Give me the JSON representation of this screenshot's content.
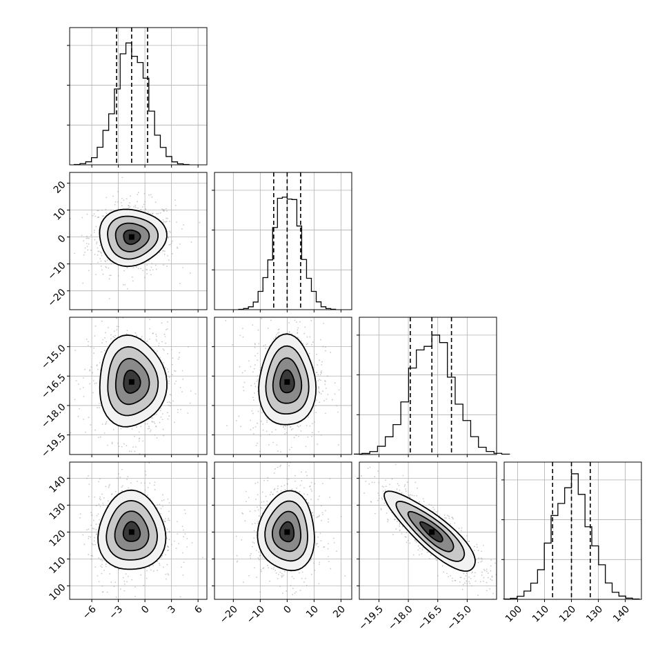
{
  "chart_data": {
    "type": "corner",
    "parameters": [
      {
        "id": "p0",
        "median": -1.5,
        "q16": -3.2,
        "q84": 0.3,
        "sigma": 1.8,
        "range": [
          -8.5,
          7.0
        ],
        "ticks": [
          -6,
          -3,
          0,
          3,
          6
        ],
        "tick_labels": [
          "−6",
          "−3",
          "0",
          "3",
          "6"
        ]
      },
      {
        "id": "p1",
        "median": 0.0,
        "q16": -5.0,
        "q84": 5.0,
        "sigma": 5.0,
        "range": [
          -27,
          24
        ],
        "ticks": [
          -20,
          -10,
          0,
          10,
          20
        ],
        "tick_labels": [
          "−20",
          "−10",
          "0",
          "10",
          "20"
        ]
      },
      {
        "id": "p2",
        "median": -16.8,
        "q16": -17.9,
        "q84": -15.8,
        "sigma": 1.1,
        "range": [
          -20.5,
          -13.5
        ],
        "ticks": [
          -19.5,
          -18.0,
          -16.5,
          -15.0
        ],
        "tick_labels": [
          "−19.5",
          "−18.0",
          "−16.5",
          "−15.0"
        ]
      },
      {
        "id": "p3",
        "median": 120.0,
        "q16": 113.0,
        "q84": 127.0,
        "sigma": 7.0,
        "range": [
          95,
          146
        ],
        "ticks": [
          100,
          110,
          120,
          130,
          140
        ],
        "tick_labels": [
          "100",
          "110",
          "120",
          "130",
          "140"
        ]
      }
    ],
    "histograms": [
      {
        "param": 0,
        "peak_fraction": 0.91
      },
      {
        "param": 1,
        "peak_fraction": 0.91
      },
      {
        "param": 2,
        "peak_fraction": 0.91
      },
      {
        "param": 3,
        "peak_fraction": 0.9
      }
    ],
    "pairs": [
      {
        "x": 0,
        "y": 1,
        "correlation": 0.0
      },
      {
        "x": 0,
        "y": 2,
        "correlation": 0.0
      },
      {
        "x": 1,
        "y": 2,
        "correlation": 0.0
      },
      {
        "x": 0,
        "y": 3,
        "correlation": 0.0
      },
      {
        "x": 1,
        "y": 3,
        "correlation": 0.0
      },
      {
        "x": 2,
        "y": 3,
        "correlation": -0.85
      }
    ],
    "contour_levels_sigma": [
      0.5,
      1.0,
      1.5,
      2.0
    ],
    "quantiles": [
      0.16,
      0.5,
      0.84
    ],
    "grid": true,
    "colors": {
      "line": "#000000",
      "grid": "#b0b0b0",
      "samples": "#9a9a9a"
    }
  }
}
